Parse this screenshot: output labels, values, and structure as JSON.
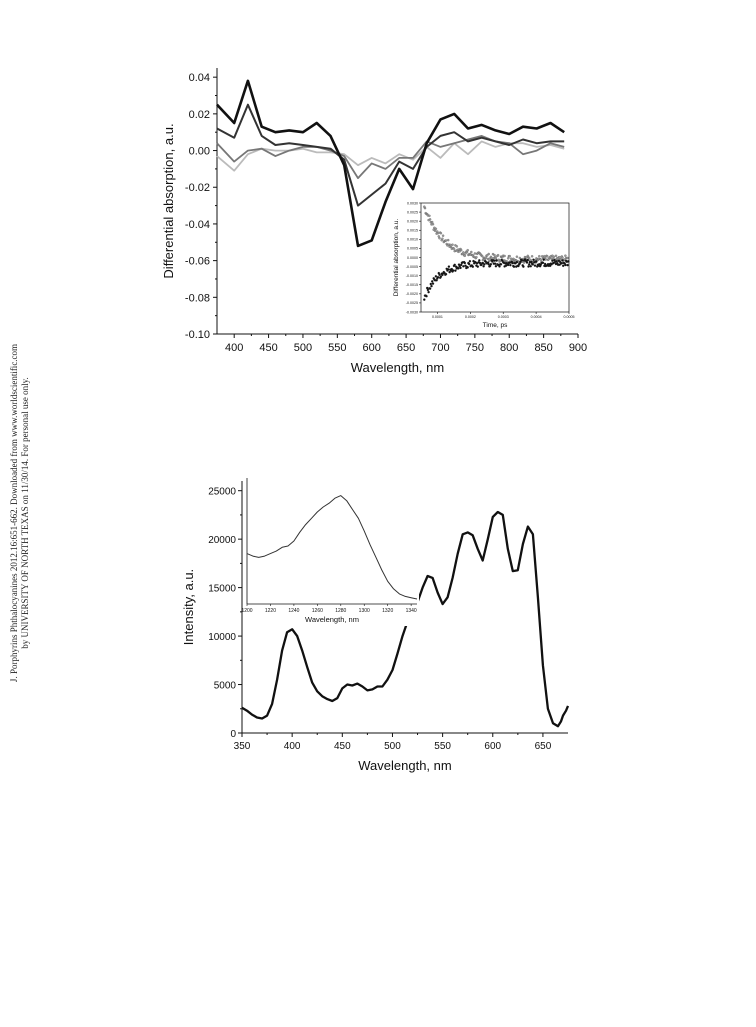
{
  "sidebar": {
    "line1": "J. Porphyrins Phthalocyanines 2012.16:651-662. Downloaded from www.worldscientific.com",
    "line2": "by UNIVERSITY OF NORTH TEXAS on 11/30/14. For personal use only."
  },
  "chart_data": [
    {
      "id": "differential-absorption",
      "type": "line",
      "xlabel": "Wavelength, nm",
      "ylabel": "Differential absorption, a.u.",
      "xlim": [
        375,
        900
      ],
      "ylim": [
        -0.1,
        0.045
      ],
      "xticks": [
        400,
        450,
        500,
        550,
        600,
        650,
        700,
        750,
        800,
        850,
        900
      ],
      "yticks": [
        0.04,
        0.02,
        0.0,
        -0.02,
        -0.04,
        -0.06,
        -0.08,
        -0.1
      ],
      "ytick_labels": [
        "0.04",
        "0.02",
        "0.00",
        "-0.02",
        "-0.04",
        "-0.06",
        "-0.08",
        "-0.10"
      ],
      "x": [
        375,
        400,
        420,
        440,
        460,
        480,
        500,
        520,
        540,
        560,
        580,
        600,
        620,
        640,
        660,
        680,
        700,
        720,
        740,
        760,
        780,
        800,
        820,
        840,
        860,
        880
      ],
      "series": [
        {
          "color": "#111111",
          "width": 2.6,
          "values": [
            0.025,
            0.015,
            0.038,
            0.013,
            0.01,
            0.011,
            0.01,
            0.015,
            0.008,
            -0.008,
            -0.052,
            -0.049,
            -0.028,
            -0.01,
            -0.021,
            0.004,
            0.017,
            0.02,
            0.012,
            0.014,
            0.011,
            0.009,
            0.013,
            0.012,
            0.015,
            0.01
          ]
        },
        {
          "color": "#333333",
          "width": 2.0,
          "values": [
            0.012,
            0.007,
            0.025,
            0.008,
            0.003,
            0.004,
            0.003,
            0.002,
            0.001,
            -0.005,
            -0.03,
            -0.024,
            -0.018,
            -0.006,
            -0.01,
            0.002,
            0.008,
            0.01,
            0.005,
            0.007,
            0.005,
            0.003,
            0.006,
            0.004,
            0.005,
            0.005
          ]
        },
        {
          "color": "#777777",
          "width": 1.8,
          "values": [
            0.004,
            -0.006,
            0.0,
            0.001,
            -0.003,
            0.0,
            0.002,
            0.002,
            0.0,
            -0.003,
            -0.015,
            -0.007,
            -0.01,
            -0.004,
            -0.004,
            0.005,
            0.002,
            0.004,
            0.006,
            0.008,
            0.005,
            0.004,
            -0.002,
            0.0,
            0.004,
            0.002
          ]
        },
        {
          "color": "#bbbbbb",
          "width": 1.8,
          "values": [
            -0.003,
            -0.011,
            -0.002,
            0.001,
            0.0,
            0.0,
            0.001,
            -0.001,
            -0.001,
            -0.002,
            -0.008,
            -0.004,
            -0.007,
            -0.002,
            -0.005,
            0.002,
            -0.004,
            0.004,
            -0.002,
            0.005,
            0.002,
            0.004,
            0.004,
            0.002,
            0.003,
            0.001
          ]
        }
      ],
      "inset": {
        "type": "scatter",
        "xlabel": "Time, ps",
        "ylabel": "Differential absorption, a.u.",
        "xlim": [
          5e-05,
          0.0005
        ],
        "ylim": [
          -0.003,
          0.003
        ],
        "xticks": [
          0.0001,
          0.0002,
          0.0003,
          0.0004,
          0.0005
        ],
        "xtick_labels": [
          "0.0001",
          "0.0002",
          "0.0003",
          "0.0004",
          "0.0005"
        ],
        "yticks": [
          0.003,
          0.0025,
          0.002,
          0.0015,
          0.001,
          0.0005,
          0.0,
          -0.0005,
          -0.001,
          -0.0015,
          -0.002,
          -0.0025,
          -0.003
        ],
        "ytick_labels": [
          "0.0030",
          "0.0025",
          "0.0020",
          "0.0015",
          "0.0010",
          "0.0005",
          "0.0000",
          "-0.0005",
          "-0.0010",
          "-0.0015",
          "-0.0020",
          "-0.0025",
          "-0.0030"
        ],
        "series": [
          {
            "color": "#999999",
            "start": 0.0028,
            "end": -0.0001,
            "t0": 6e-05,
            "tau": 6e-05
          },
          {
            "color": "#111111",
            "start": -0.0022,
            "end": -0.0003,
            "t0": 6e-05,
            "tau": 4.5e-05
          }
        ]
      }
    },
    {
      "id": "intensity",
      "type": "line",
      "xlabel": "Wavelength, nm",
      "ylabel": "Intensity, a.u.",
      "xlim": [
        350,
        675
      ],
      "ylim": [
        0,
        26000
      ],
      "xticks": [
        350,
        400,
        450,
        500,
        550,
        600,
        650
      ],
      "yticks": [
        0,
        5000,
        10000,
        15000,
        20000,
        25000
      ],
      "x": [
        350,
        355,
        360,
        365,
        370,
        375,
        380,
        385,
        390,
        395,
        400,
        405,
        410,
        415,
        420,
        425,
        430,
        435,
        440,
        445,
        450,
        455,
        460,
        465,
        470,
        475,
        480,
        485,
        490,
        495,
        500,
        505,
        510,
        515,
        520,
        525,
        530,
        535,
        540,
        545,
        550,
        555,
        560,
        565,
        570,
        575,
        580,
        585,
        590,
        595,
        600,
        605,
        610,
        615,
        620,
        625,
        630,
        635,
        640,
        645,
        650,
        655,
        660,
        665,
        668,
        670,
        673,
        675
      ],
      "values": [
        2600,
        2300,
        1900,
        1600,
        1500,
        1800,
        3000,
        5500,
        8500,
        10400,
        10700,
        10000,
        8500,
        6800,
        5200,
        4300,
        3800,
        3500,
        3300,
        3600,
        4600,
        5000,
        4900,
        5100,
        4800,
        4400,
        4500,
        4800,
        4800,
        5500,
        6500,
        8200,
        10000,
        11500,
        12500,
        13500,
        15000,
        16200,
        16000,
        14500,
        13300,
        14000,
        16000,
        18500,
        20500,
        20700,
        20400,
        19000,
        17800,
        20000,
        22300,
        22800,
        22500,
        19000,
        16700,
        16800,
        19500,
        21300,
        20500,
        14000,
        7000,
        2500,
        1000,
        700,
        1200,
        1800,
        2300,
        2800
      ],
      "inset": {
        "type": "line",
        "xlabel": "Wavelength, nm",
        "xlim": [
          1200,
          1345
        ],
        "xticks": [
          1200,
          1220,
          1240,
          1260,
          1280,
          1300,
          1320,
          1340
        ],
        "ylim": [
          0,
          1
        ],
        "x": [
          1200,
          1205,
          1210,
          1215,
          1220,
          1225,
          1230,
          1235,
          1240,
          1245,
          1250,
          1255,
          1260,
          1265,
          1270,
          1275,
          1280,
          1285,
          1290,
          1295,
          1300,
          1305,
          1310,
          1315,
          1320,
          1325,
          1330,
          1335,
          1340,
          1345
        ],
        "values": [
          0.4,
          0.38,
          0.37,
          0.38,
          0.4,
          0.42,
          0.45,
          0.46,
          0.5,
          0.57,
          0.63,
          0.68,
          0.73,
          0.77,
          0.8,
          0.84,
          0.86,
          0.82,
          0.75,
          0.68,
          0.58,
          0.47,
          0.37,
          0.27,
          0.18,
          0.12,
          0.08,
          0.06,
          0.05,
          0.04
        ]
      }
    }
  ]
}
